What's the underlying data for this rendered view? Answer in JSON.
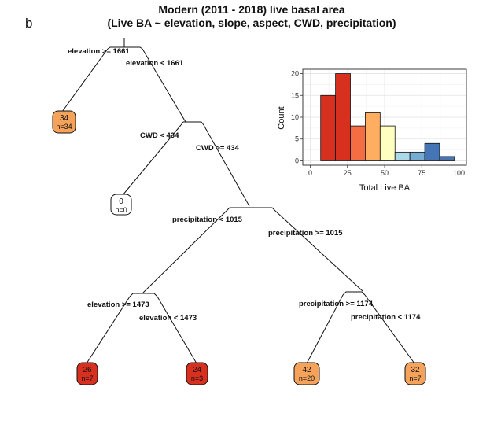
{
  "panel_letter": "b",
  "title": {
    "line1": "Modern (2011 - 2018) live basal area",
    "line2": "(Live BA ~ elevation, slope, aspect, CWD, precipitation)"
  },
  "tree": {
    "splits": [
      {
        "id": "elev1",
        "left_label": "elevation >= 1661",
        "right_label": "elevation < 1661"
      },
      {
        "id": "cwd",
        "left_label": "CWD < 434",
        "right_label": "CWD >= 434"
      },
      {
        "id": "precip",
        "left_label": "precipitation < 1015",
        "right_label": "precipitation >= 1015"
      },
      {
        "id": "elev2",
        "left_label": "elevation >= 1473",
        "right_label": "elevation < 1473"
      },
      {
        "id": "precip2",
        "left_label": "precipitation >= 1174",
        "right_label": "precipitation < 1174"
      }
    ],
    "leaves": [
      {
        "id": "leaf-a",
        "value": "34",
        "n": "n=34",
        "color": "#F5A35A"
      },
      {
        "id": "leaf-b",
        "value": "0",
        "n": "n=0",
        "color": "#FFFFFF"
      },
      {
        "id": "leaf-c",
        "value": "26",
        "n": "n=7",
        "color": "#D7301F"
      },
      {
        "id": "leaf-d",
        "value": "24",
        "n": "n=3",
        "color": "#D7301F"
      },
      {
        "id": "leaf-e",
        "value": "42",
        "n": "n=20",
        "color": "#F5A35A"
      },
      {
        "id": "leaf-f",
        "value": "32",
        "n": "n=7",
        "color": "#F5A35A"
      }
    ]
  },
  "chart_data": {
    "type": "bar",
    "xlabel": "Total Live BA",
    "ylabel": "Count",
    "xlim": [
      -5,
      105
    ],
    "ylim": [
      -1,
      21
    ],
    "xticks": [
      0,
      25,
      50,
      75,
      100
    ],
    "yticks": [
      0,
      5,
      10,
      15,
      20
    ],
    "grid": true,
    "bins": [
      {
        "x0": 7,
        "x1": 17,
        "count": 15,
        "color": "#D7301F"
      },
      {
        "x0": 17,
        "x1": 27,
        "count": 20,
        "color": "#D7301F"
      },
      {
        "x0": 27,
        "x1": 37,
        "count": 8,
        "color": "#F46D43"
      },
      {
        "x0": 37,
        "x1": 47,
        "count": 11,
        "color": "#FDAE61"
      },
      {
        "x0": 47,
        "x1": 57,
        "count": 8,
        "color": "#FFFFBF"
      },
      {
        "x0": 57,
        "x1": 67,
        "count": 2,
        "color": "#ABD9E9"
      },
      {
        "x0": 67,
        "x1": 77,
        "count": 2,
        "color": "#74ADD1"
      },
      {
        "x0": 77,
        "x1": 87,
        "count": 4,
        "color": "#4575B4"
      },
      {
        "x0": 87,
        "x1": 97,
        "count": 1,
        "color": "#4575B4"
      }
    ]
  }
}
